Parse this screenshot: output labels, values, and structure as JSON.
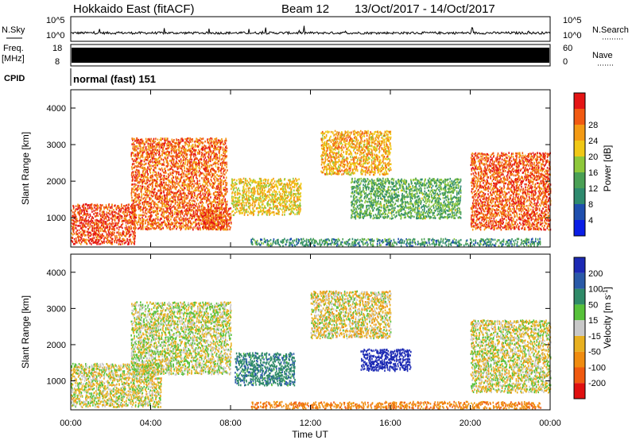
{
  "header": {
    "station": "Hokkaido East (fitACF)",
    "beam": "Beam 12",
    "date_range": "13/Oct/2017 - 14/Oct/2017"
  },
  "nsky": {
    "label_left": "N.Sky",
    "tick_top_left": "10^5",
    "tick_bottom_left": "10^0",
    "tick_top_right": "10^5",
    "tick_bottom_right": "10^0",
    "label_right": "N.Search"
  },
  "freq": {
    "label_left_line1": "Freq.",
    "label_left_line2": "[MHz]",
    "tick_top_left": "18",
    "tick_bottom_left": "8",
    "tick_top_right": "60",
    "tick_bottom_right": "0",
    "label_right": "Nave"
  },
  "cpid": {
    "label": "CPID",
    "value": "normal (fast) 151"
  },
  "colors": {
    "power_scale": [
      "#0a1ee6",
      "#1f4fae",
      "#2e8a6e",
      "#4aa055",
      "#8ec83a",
      "#f0c816",
      "#f39a14",
      "#f15a12",
      "#e41515"
    ],
    "velocity_scale": [
      "#1c2ab4",
      "#2a5aa8",
      "#2f8a68",
      "#57c13a",
      "#c8c8c8",
      "#e8b020",
      "#f08c10",
      "#f05a10",
      "#e01010"
    ],
    "freq_bar": "#000000"
  },
  "chart_data": [
    {
      "type": "heatmap",
      "title": "",
      "xlabel": "",
      "ylabel": "Slant Range [km]",
      "x_ticks": [
        "00:00",
        "04:00",
        "08:00",
        "12:00",
        "16:00",
        "20:00",
        "00:00"
      ],
      "xlim_hours": [
        0,
        24
      ],
      "y_ticks": [
        1000,
        2000,
        3000,
        4000
      ],
      "ylim": [
        200,
        4500
      ],
      "colorbar": {
        "label": "Power [dB]",
        "ticks": [
          4,
          8,
          12,
          16,
          20,
          24,
          28
        ],
        "range": [
          0,
          32
        ]
      },
      "regions": [
        {
          "name": "E/F near range",
          "t": [
            0,
            3.2
          ],
          "range_km": [
            300,
            1400
          ],
          "power_db": 28
        },
        {
          "name": "F slant arc",
          "t": [
            3.0,
            7.8
          ],
          "range_km": [
            700,
            3200
          ],
          "power_db": 26
        },
        {
          "name": "F patch",
          "t": [
            6.5,
            8.0
          ],
          "range_km": [
            700,
            1300
          ],
          "power_db": 27
        },
        {
          "name": "mid-range band",
          "t": [
            8.0,
            11.5
          ],
          "range_km": [
            1100,
            2100
          ],
          "power_db": 20
        },
        {
          "name": "far range",
          "t": [
            12.5,
            16.0
          ],
          "range_km": [
            2200,
            3400
          ],
          "power_db": 22
        },
        {
          "name": "descending echo",
          "t": [
            14.0,
            19.5
          ],
          "range_km": [
            1000,
            2100
          ],
          "power_db": 13
        },
        {
          "name": "ground scatter low",
          "t": [
            9.0,
            23.5
          ],
          "range_km": [
            250,
            450
          ],
          "power_db": 10
        },
        {
          "name": "late F region",
          "t": [
            20.0,
            24.0
          ],
          "range_km": [
            700,
            2800
          ],
          "power_db": 27
        }
      ]
    },
    {
      "type": "heatmap",
      "title": "",
      "xlabel": "Time UT",
      "ylabel": "Slant Range [km]",
      "x_ticks": [
        "00:00",
        "04:00",
        "08:00",
        "12:00",
        "16:00",
        "20:00",
        "00:00"
      ],
      "xlim_hours": [
        0,
        24
      ],
      "y_ticks": [
        1000,
        2000,
        3000,
        4000
      ],
      "ylim": [
        200,
        4500
      ],
      "colorbar": {
        "label": "Velocity [m s^-1]",
        "ticks": [
          200,
          100,
          50,
          15,
          -15,
          -50,
          -100,
          -200
        ]
      },
      "regions": [
        {
          "name": "near range mixed",
          "t": [
            0,
            4.5
          ],
          "range_km": [
            300,
            1500
          ],
          "velocity_ms": -5
        },
        {
          "name": "F arc",
          "t": [
            3.0,
            8.0
          ],
          "range_km": [
            1200,
            3200
          ],
          "velocity_ms": 0
        },
        {
          "name": "green patch",
          "t": [
            8.2,
            11.2
          ],
          "range_km": [
            900,
            1800
          ],
          "velocity_ms": 60
        },
        {
          "name": "far range grey",
          "t": [
            12.0,
            16.0
          ],
          "range_km": [
            2200,
            3500
          ],
          "velocity_ms": -10
        },
        {
          "name": "blue band",
          "t": [
            14.5,
            17.0
          ],
          "range_km": [
            1300,
            1900
          ],
          "velocity_ms": 180
        },
        {
          "name": "low band orange",
          "t": [
            9.0,
            23.5
          ],
          "range_km": [
            250,
            450
          ],
          "velocity_ms": -60
        },
        {
          "name": "late grey",
          "t": [
            20.0,
            24.0
          ],
          "range_km": [
            700,
            2700
          ],
          "velocity_ms": -5
        }
      ]
    }
  ]
}
